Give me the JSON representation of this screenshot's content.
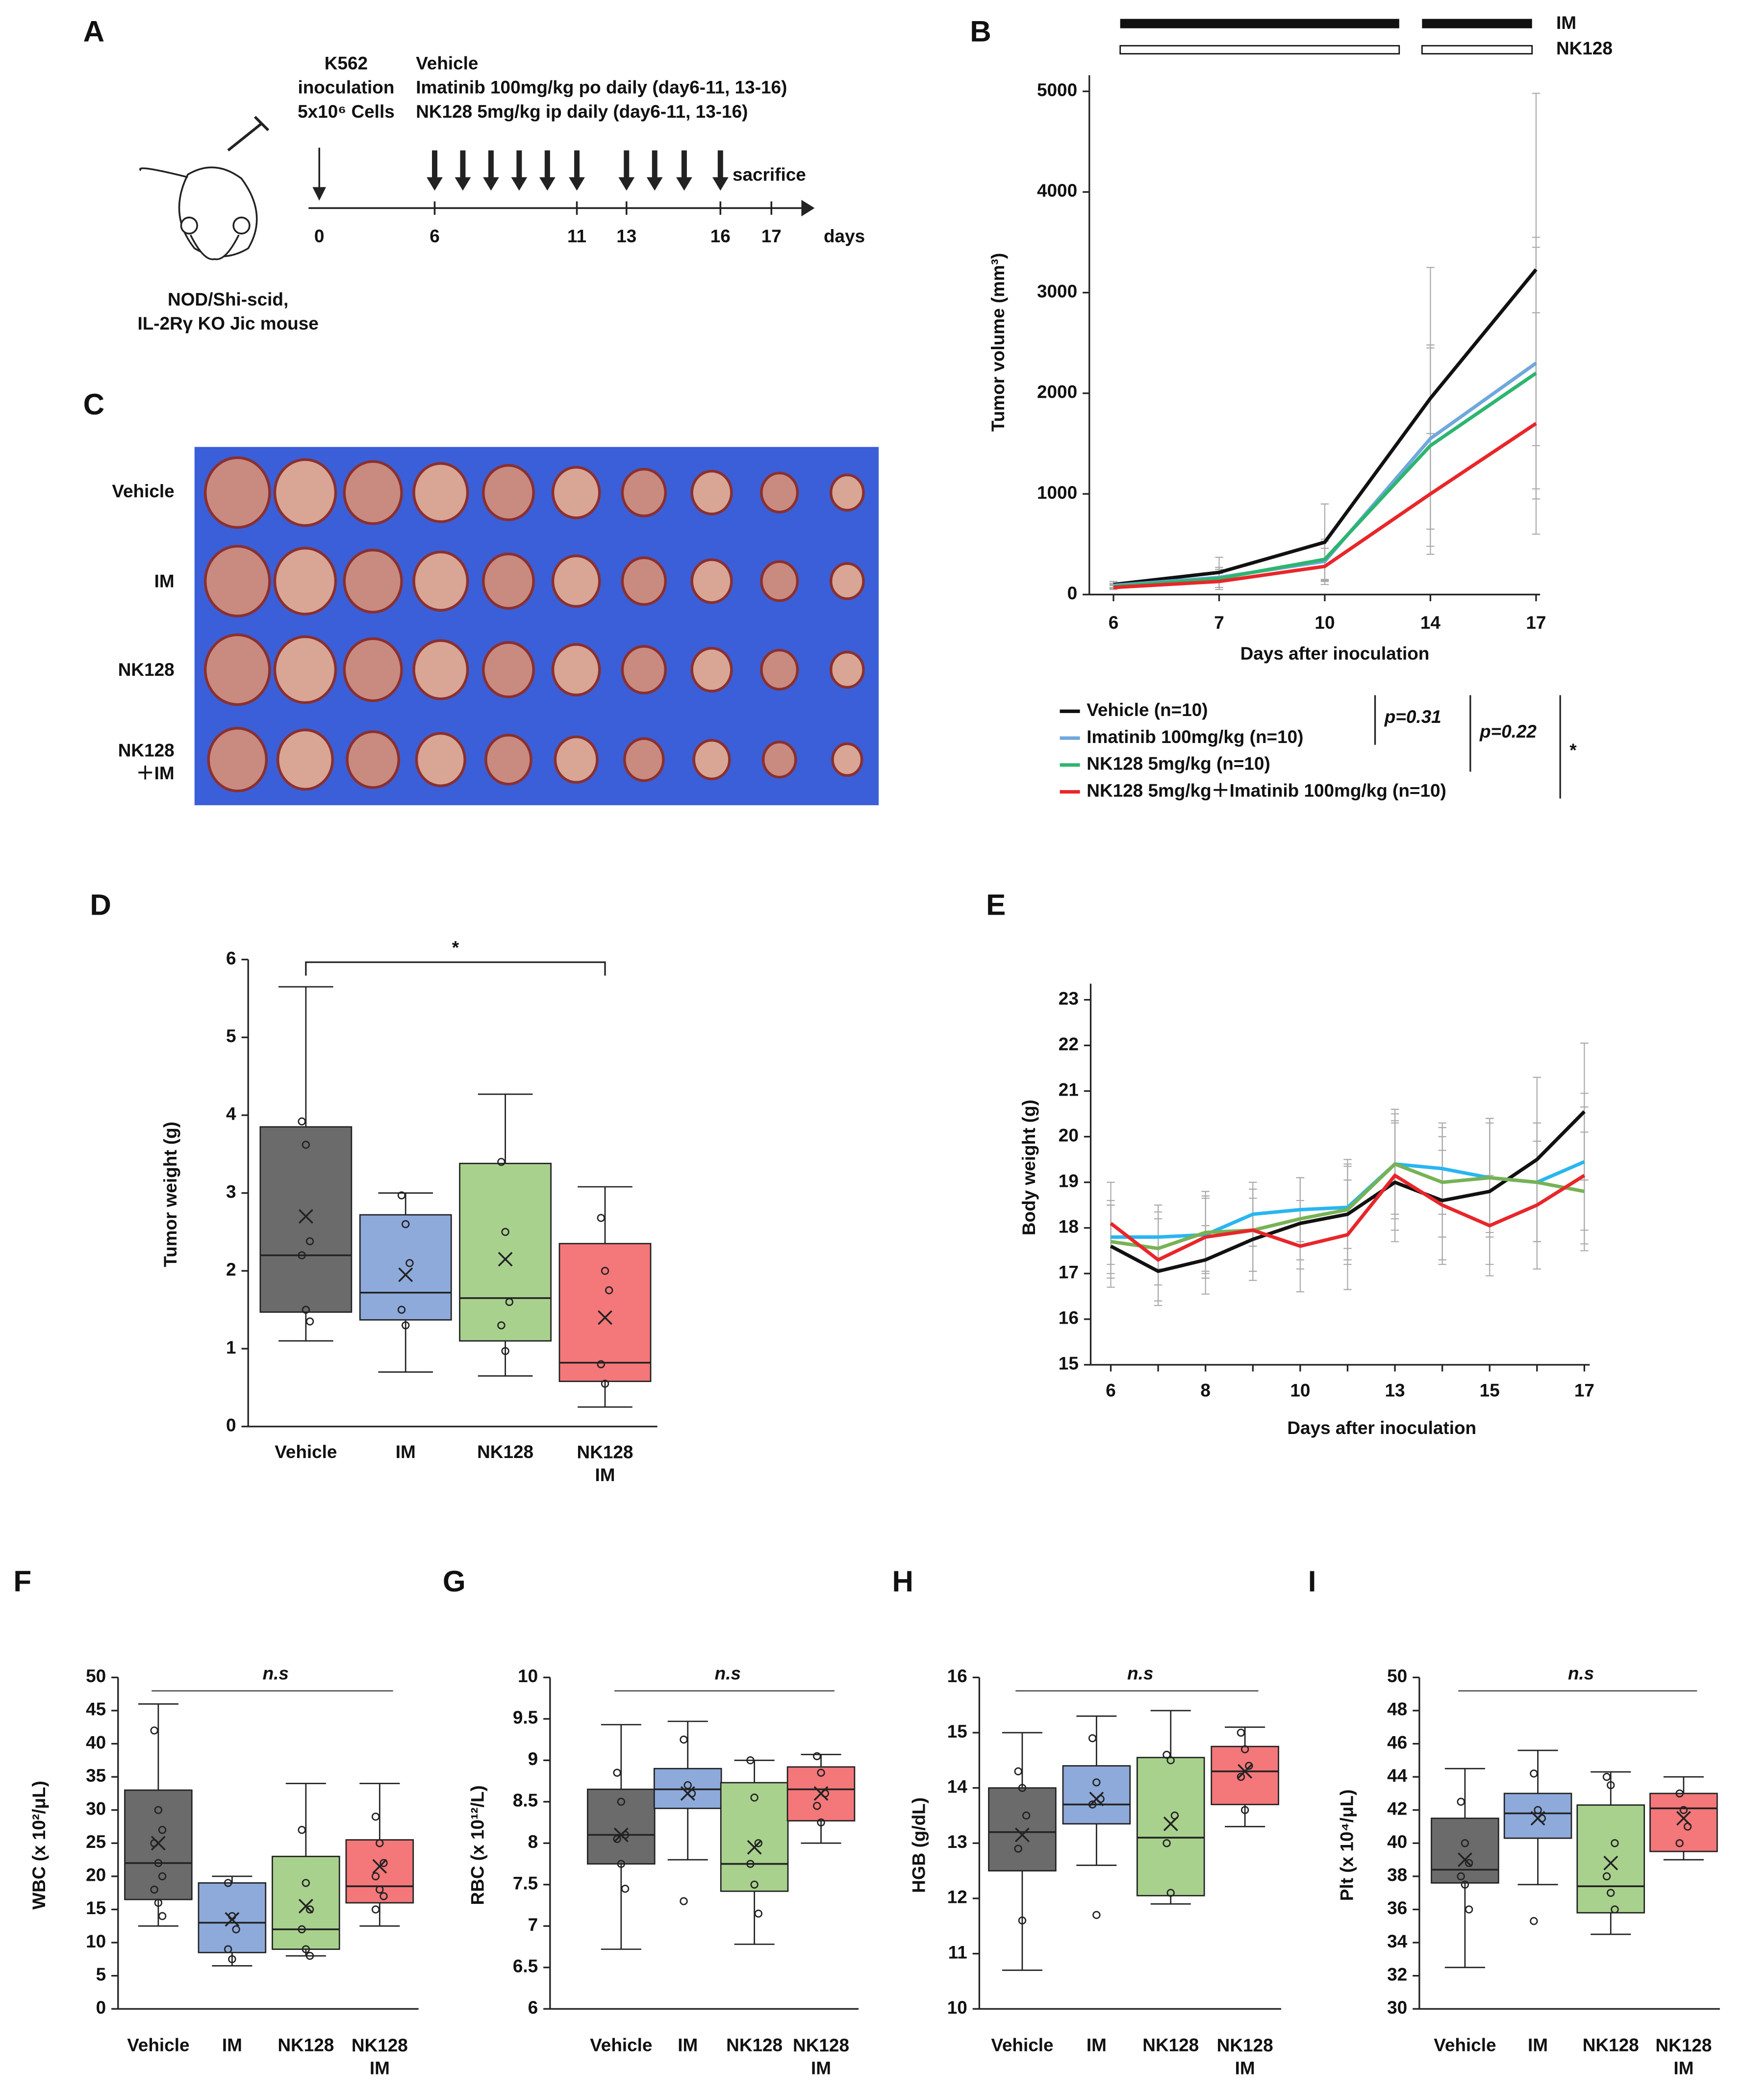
{
  "diagram": {
    "panel": "A",
    "inoculation": [
      "K562",
      "inoculation",
      "5x10⁶ Cells"
    ],
    "treatments": [
      "Vehicle",
      "Imatinib 100mg/kg po daily (day6-11, 13-16)",
      "NK128 5mg/kg ip daily (day6-11, 13-16)"
    ],
    "sacrifice": "sacrifice",
    "days": [
      "0",
      "6",
      "11",
      "13",
      "16",
      "17"
    ],
    "days_label": "days",
    "mouse": [
      "NOD/Shi-scid,",
      "IL-2Rγ KO Jic mouse"
    ]
  },
  "photo": {
    "panel": "C",
    "rows": [
      "Vehicle",
      "IM",
      "NK128",
      "NK128\n＋IM"
    ]
  },
  "chart_data": [
    {
      "type": "line",
      "panel": "B",
      "ylabel": "Tumor volume (mm³)",
      "xlabel": "Days after inoculation",
      "categories": [
        "6",
        "7",
        "10",
        "14",
        "17"
      ],
      "ylim": [
        0,
        5000
      ],
      "yticks": [
        0,
        1000,
        2000,
        3000,
        4000,
        5000
      ],
      "treatment_bars": [
        "IM",
        "NK128"
      ],
      "series": [
        {
          "name": "Vehicle (n=10)",
          "color": "#111111",
          "values": [
            100,
            220,
            520,
            1950,
            3230
          ],
          "errors": [
            30,
            150,
            380,
            1300,
            1750
          ]
        },
        {
          "name": "Imatinib 100mg/kg (n=10)",
          "color": "#6fa8dc",
          "values": [
            90,
            170,
            330,
            1550,
            2300
          ],
          "errors": [
            20,
            100,
            200,
            900,
            1250
          ]
        },
        {
          "name": "NK128 5mg/kg (n=10)",
          "color": "#2db56f",
          "values": [
            80,
            160,
            350,
            1480,
            2200
          ],
          "errors": [
            20,
            90,
            200,
            1000,
            1250
          ]
        },
        {
          "name": "NK128 5mg/kg＋Imatinib 100mg/kg (n=10)",
          "color": "#e8262a",
          "values": [
            70,
            130,
            280,
            1000,
            1700
          ],
          "errors": [
            20,
            80,
            180,
            600,
            1100
          ]
        }
      ],
      "annotations": [
        "p=0.31",
        "p=0.22",
        "*"
      ]
    },
    {
      "type": "box",
      "panel": "D",
      "ylabel": "Tumor weight (g)",
      "categories": [
        "Vehicle",
        "IM",
        "NK128",
        "NK128\nIM"
      ],
      "ylim": [
        0,
        6
      ],
      "yticks": [
        0,
        1,
        2,
        3,
        4,
        5,
        6
      ],
      "annotation": "*",
      "boxes": [
        {
          "color": "#6b6b6b",
          "min": 1.1,
          "q1": 1.47,
          "median": 2.2,
          "q3": 3.85,
          "max": 5.65,
          "mean": 2.7,
          "points": [
            3.92,
            3.62,
            2.38,
            2.2,
            1.5,
            1.35
          ]
        },
        {
          "color": "#8eaadb",
          "min": 0.7,
          "q1": 1.37,
          "median": 1.72,
          "q3": 2.72,
          "max": 3.0,
          "mean": 1.95,
          "points": [
            2.97,
            2.6,
            2.1,
            1.5,
            1.3
          ]
        },
        {
          "color": "#a9d18e",
          "min": 0.65,
          "q1": 1.1,
          "median": 1.65,
          "q3": 3.38,
          "max": 4.27,
          "mean": 2.15,
          "points": [
            3.4,
            2.5,
            1.6,
            1.3,
            0.97
          ]
        },
        {
          "color": "#f4777a",
          "min": 0.25,
          "q1": 0.58,
          "median": 0.82,
          "q3": 2.35,
          "max": 3.08,
          "mean": 1.4,
          "points": [
            2.68,
            2.0,
            1.75,
            0.8,
            0.55
          ]
        }
      ]
    },
    {
      "type": "line",
      "panel": "E",
      "ylabel": "Body weight (g)",
      "xlabel": "Days after inoculation",
      "categories": [
        "6",
        null,
        "8",
        null,
        "10",
        null,
        "13",
        null,
        "15",
        null,
        "17"
      ],
      "ylim": [
        15,
        23
      ],
      "yticks": [
        15,
        16,
        17,
        18,
        19,
        20,
        21,
        22,
        23
      ],
      "series": [
        {
          "color": "#111111",
          "values": [
            17.6,
            17.05,
            17.3,
            17.75,
            18.1,
            18.3,
            19.0,
            18.6,
            18.8,
            19.5,
            20.55
          ],
          "errors": [
            0.9,
            0.75,
            0.75,
            0.9,
            1.0,
            1.1,
            1.3,
            1.4,
            1.6,
            1.8,
            1.5
          ]
        },
        {
          "color": "#29b6f0",
          "values": [
            17.8,
            17.8,
            17.85,
            18.3,
            18.4,
            18.45,
            19.4,
            19.3,
            19.1,
            19.0,
            19.45
          ],
          "errors": [
            0.8,
            0.7,
            0.8,
            0.7,
            0.7,
            0.9,
            1.1,
            1.0,
            1.3,
            1.3,
            1.5
          ]
        },
        {
          "color": "#77b255",
          "values": [
            17.7,
            17.55,
            17.9,
            17.95,
            18.2,
            18.4,
            19.4,
            19.0,
            19.1,
            19.0,
            18.8
          ],
          "errors": [
            0.8,
            0.8,
            0.9,
            0.9,
            0.9,
            1.1,
            1.2,
            1.2,
            1.2,
            1.3,
            1.3
          ]
        },
        {
          "color": "#e8262a",
          "values": [
            18.1,
            17.3,
            17.8,
            17.95,
            17.6,
            17.85,
            19.15,
            18.5,
            18.05,
            18.5,
            19.15
          ],
          "errors": [
            0.9,
            0.9,
            0.9,
            0.9,
            1.0,
            1.2,
            1.2,
            1.2,
            1.1,
            1.4,
            1.5
          ]
        }
      ]
    },
    {
      "type": "box",
      "panel": "F",
      "ylabel": "WBC (x 10²/μL)",
      "categories": [
        "Vehicle",
        "IM",
        "NK128",
        "NK128\nIM"
      ],
      "ylim": [
        0,
        50
      ],
      "yticks": [
        0,
        5,
        10,
        15,
        20,
        25,
        30,
        35,
        40,
        45,
        50
      ],
      "annotation": "n.s",
      "boxes": [
        {
          "color": "#6b6b6b",
          "min": 12.5,
          "q1": 16.5,
          "median": 22,
          "q3": 33,
          "max": 46,
          "mean": 25,
          "points": [
            42,
            30,
            27,
            25,
            22,
            20,
            18,
            16,
            14
          ]
        },
        {
          "color": "#8eaadb",
          "min": 6.5,
          "q1": 8.5,
          "median": 13,
          "q3": 19,
          "max": 20,
          "mean": 13.5,
          "points": [
            19,
            14,
            12,
            9,
            7.5
          ]
        },
        {
          "color": "#a9d18e",
          "min": 8,
          "q1": 9,
          "median": 12,
          "q3": 23,
          "max": 34,
          "mean": 15.5,
          "points": [
            27,
            19,
            15,
            12,
            9,
            8
          ]
        },
        {
          "color": "#f4777a",
          "min": 12.5,
          "q1": 16,
          "median": 18.5,
          "q3": 25.5,
          "max": 34,
          "mean": 21.5,
          "points": [
            29,
            25,
            22,
            20,
            18,
            17,
            15
          ]
        }
      ]
    },
    {
      "type": "box",
      "panel": "G",
      "ylabel": "RBC (x 10¹²/L)",
      "categories": [
        "Vehicle",
        "IM",
        "NK128",
        "NK128\nIM"
      ],
      "ylim": [
        6,
        10
      ],
      "yticks": [
        6,
        6.5,
        7,
        7.5,
        8,
        8.5,
        9,
        9.5,
        10
      ],
      "annotation": "n.s",
      "boxes": [
        {
          "color": "#6b6b6b",
          "min": 6.72,
          "q1": 7.75,
          "median": 8.1,
          "q3": 8.65,
          "max": 9.43,
          "mean": 8.1,
          "points": [
            8.85,
            8.5,
            8.1,
            8.05,
            7.75,
            7.45
          ]
        },
        {
          "color": "#8eaadb",
          "min": 7.8,
          "q1": 8.42,
          "median": 8.65,
          "q3": 8.9,
          "max": 9.47,
          "mean": 8.6,
          "points": [
            9.25,
            8.7,
            8.6,
            7.3
          ]
        },
        {
          "color": "#a9d18e",
          "min": 6.78,
          "q1": 7.42,
          "median": 7.75,
          "q3": 8.73,
          "max": 9.0,
          "mean": 7.95,
          "points": [
            9.0,
            8.55,
            8.0,
            7.75,
            7.5,
            7.15
          ]
        },
        {
          "color": "#f4777a",
          "min": 8.0,
          "q1": 8.27,
          "median": 8.65,
          "q3": 8.92,
          "max": 9.07,
          "mean": 8.6,
          "points": [
            9.05,
            8.85,
            8.6,
            8.45,
            8.25
          ]
        }
      ]
    },
    {
      "type": "box",
      "panel": "H",
      "ylabel": "HGB (g/dL)",
      "categories": [
        "Vehicle",
        "IM",
        "NK128",
        "NK128\nIM"
      ],
      "ylim": [
        10,
        16
      ],
      "yticks": [
        10,
        11,
        12,
        13,
        14,
        15,
        16
      ],
      "annotation": "n.s",
      "boxes": [
        {
          "color": "#6b6b6b",
          "min": 10.7,
          "q1": 12.5,
          "median": 13.2,
          "q3": 14.0,
          "max": 15.0,
          "mean": 13.15,
          "points": [
            14.3,
            14.0,
            13.5,
            12.9,
            11.6
          ]
        },
        {
          "color": "#8eaadb",
          "min": 12.6,
          "q1": 13.35,
          "median": 13.7,
          "q3": 14.4,
          "max": 15.3,
          "mean": 13.8,
          "points": [
            14.9,
            14.1,
            13.8,
            13.7,
            11.7
          ]
        },
        {
          "color": "#a9d18e",
          "min": 11.9,
          "q1": 12.05,
          "median": 13.1,
          "q3": 14.55,
          "max": 15.4,
          "mean": 13.35,
          "points": [
            14.6,
            14.5,
            13.5,
            13.0,
            12.1
          ]
        },
        {
          "color": "#f4777a",
          "min": 13.3,
          "q1": 13.7,
          "median": 14.3,
          "q3": 14.75,
          "max": 15.1,
          "mean": 14.3,
          "points": [
            15.0,
            14.7,
            14.4,
            14.2,
            13.6
          ]
        }
      ]
    },
    {
      "type": "box",
      "panel": "I",
      "ylabel": "Plt (x 10⁴/μL)",
      "categories": [
        "Vehicle",
        "IM",
        "NK128",
        "NK128\nIM"
      ],
      "ylim": [
        30,
        50
      ],
      "yticks": [
        30,
        32,
        34,
        36,
        38,
        40,
        42,
        44,
        46,
        48,
        50
      ],
      "annotation": "n.s",
      "boxes": [
        {
          "color": "#6b6b6b",
          "min": 32.5,
          "q1": 37.6,
          "median": 38.4,
          "q3": 41.5,
          "max": 44.5,
          "mean": 39,
          "points": [
            42.5,
            40,
            38.8,
            38,
            37.5,
            36
          ]
        },
        {
          "color": "#8eaadb",
          "min": 37.5,
          "q1": 40.3,
          "median": 41.8,
          "q3": 43,
          "max": 45.6,
          "mean": 41.5,
          "points": [
            44.2,
            42,
            41.5,
            35.3
          ]
        },
        {
          "color": "#a9d18e",
          "min": 34.5,
          "q1": 35.8,
          "median": 37.4,
          "q3": 42.3,
          "max": 44.3,
          "mean": 38.8,
          "points": [
            44,
            43.5,
            40,
            38,
            37,
            36
          ]
        },
        {
          "color": "#f4777a",
          "min": 39,
          "q1": 39.5,
          "median": 42.1,
          "q3": 43,
          "max": 44,
          "mean": 41.5,
          "points": [
            43,
            42,
            41,
            40
          ]
        }
      ]
    }
  ]
}
